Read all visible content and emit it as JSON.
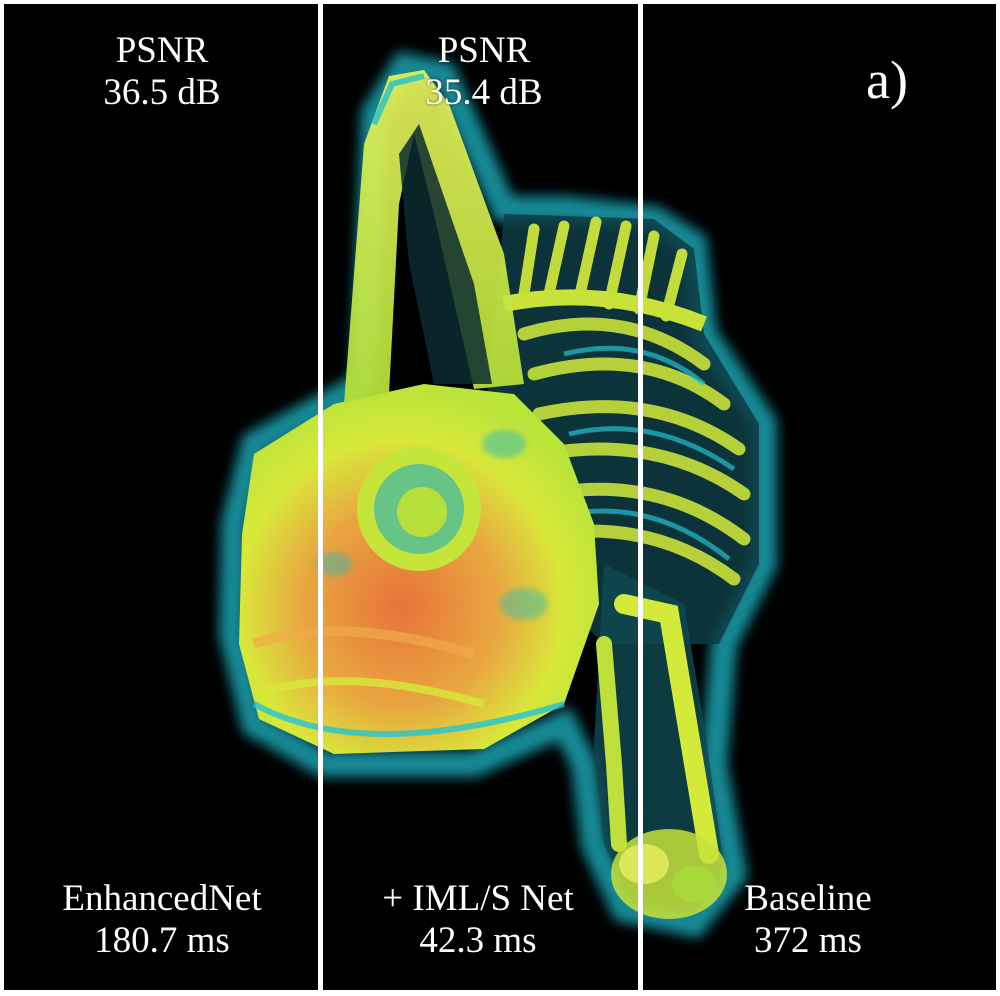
{
  "panel_tag": "a)",
  "columns": [
    {
      "metric_label": "PSNR",
      "metric_value": "36.5 dB",
      "method": "EnhancedNet",
      "time": "180.7 ms"
    },
    {
      "metric_label": "PSNR",
      "metric_value": "35.4 dB",
      "method": "+ IML/S Net",
      "time": "42.3 ms"
    },
    {
      "method": "Baseline",
      "time": "372 ms"
    }
  ],
  "colors": {
    "background": "#000000",
    "divider": "#ffffff",
    "text": "#ffffff",
    "render_cyan": "#1fb8c8",
    "render_yellow": "#d8f02a",
    "render_orange": "#e8733a"
  }
}
